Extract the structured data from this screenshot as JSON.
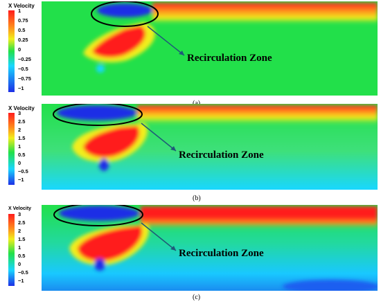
{
  "colors": {
    "blue": "#1d2fe6",
    "cyan": "#19d7ff",
    "green": "#22e04a",
    "yellow": "#f2ee1c",
    "orange": "#ff8a1c",
    "red": "#ff1d1d",
    "ellipse": "#000000",
    "arrow": "#1f5a78"
  },
  "panels": [
    {
      "caption": "(a)",
      "legend_title": "X Velocity",
      "ticks": [
        "1",
        "0.75",
        "0.5",
        "0.25",
        "0",
        "−0.25",
        "−0.5",
        "−0.75",
        "−1"
      ],
      "callout": "Recirculation Zone"
    },
    {
      "caption": "(b)",
      "legend_title": "X Velocity",
      "ticks": [
        "3",
        "2.5",
        "2",
        "1.5",
        "1",
        "0.5",
        "0",
        "−0.5",
        "−1"
      ],
      "callout": "Recirculation Zone"
    },
    {
      "caption": "(c)",
      "legend_title": "X Velocity",
      "ticks": [
        "3",
        "2.5",
        "2",
        "1.5",
        "1",
        "0.5",
        "0",
        "−0.5",
        "−1"
      ],
      "callout": "Recirculation Zone"
    }
  ]
}
